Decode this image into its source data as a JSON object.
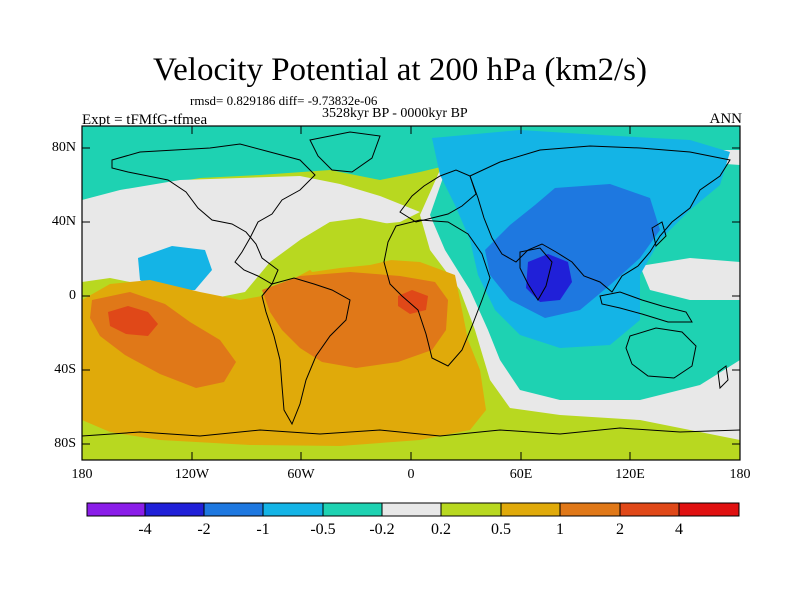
{
  "title": "Velocity Potential at 200 hPa (km2/s)",
  "stats": "rmsd= 0.829186 diff= -9.73832e-06",
  "period": "3528kyr BP - 0000kyr BP",
  "expt": "Expt = tFMfG-tfmea",
  "season": "ANN",
  "axes": {
    "y_ticks": [
      "80N",
      "40N",
      "0",
      "40S",
      "80S"
    ],
    "x_ticks": [
      "180",
      "120W",
      "60W",
      "0",
      "60E",
      "120E",
      "180"
    ]
  },
  "colorbar": {
    "levels": [
      "-4",
      "-2",
      "-1",
      "-0.5",
      "-0.2",
      "0.2",
      "0.5",
      "1",
      "2",
      "4"
    ],
    "colors": [
      "#8a1de8",
      "#2020d8",
      "#1e78e0",
      "#14b4e6",
      "#1ed2b2",
      "#e8e8e8",
      "#b8d820",
      "#e0aa0a",
      "#e07818",
      "#e04818",
      "#e01010"
    ]
  }
}
